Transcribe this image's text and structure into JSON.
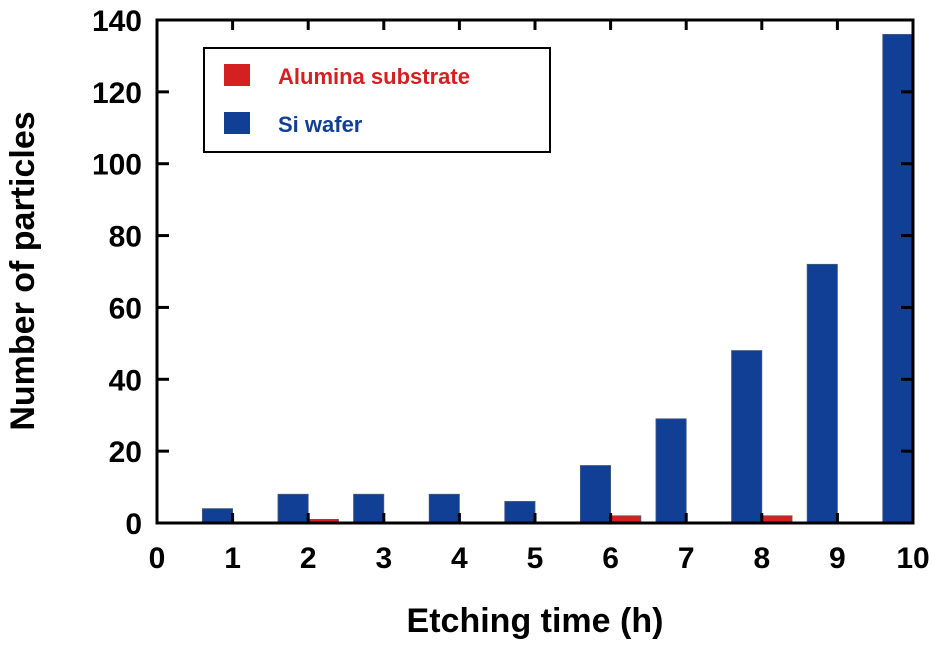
{
  "chart_data": {
    "type": "bar",
    "xlabel": "Etching time (h)",
    "ylabel": "Number of particles",
    "xlim": [
      0,
      10
    ],
    "ylim": [
      0,
      140
    ],
    "xticks": [
      "0",
      "1",
      "2",
      "3",
      "4",
      "5",
      "6",
      "7",
      "8",
      "9",
      "10"
    ],
    "yticks": [
      "0",
      "20",
      "40",
      "60",
      "80",
      "100",
      "120",
      "140"
    ],
    "grid": false,
    "legend": "top-left",
    "series": [
      {
        "name": "Alumina substrate",
        "color": "#d42020",
        "x": [
          1,
          2,
          3,
          4,
          5,
          6,
          7,
          8,
          9,
          10
        ],
        "values": [
          0,
          1,
          0,
          0,
          0,
          2,
          0,
          2,
          0,
          0
        ]
      },
      {
        "name": "Si wafer",
        "color": "#123f96",
        "x": [
          1,
          2,
          3,
          4,
          5,
          6,
          7,
          8,
          9,
          10
        ],
        "values": [
          4,
          8,
          8,
          8,
          6,
          16,
          29,
          48,
          72,
          136
        ]
      }
    ]
  }
}
